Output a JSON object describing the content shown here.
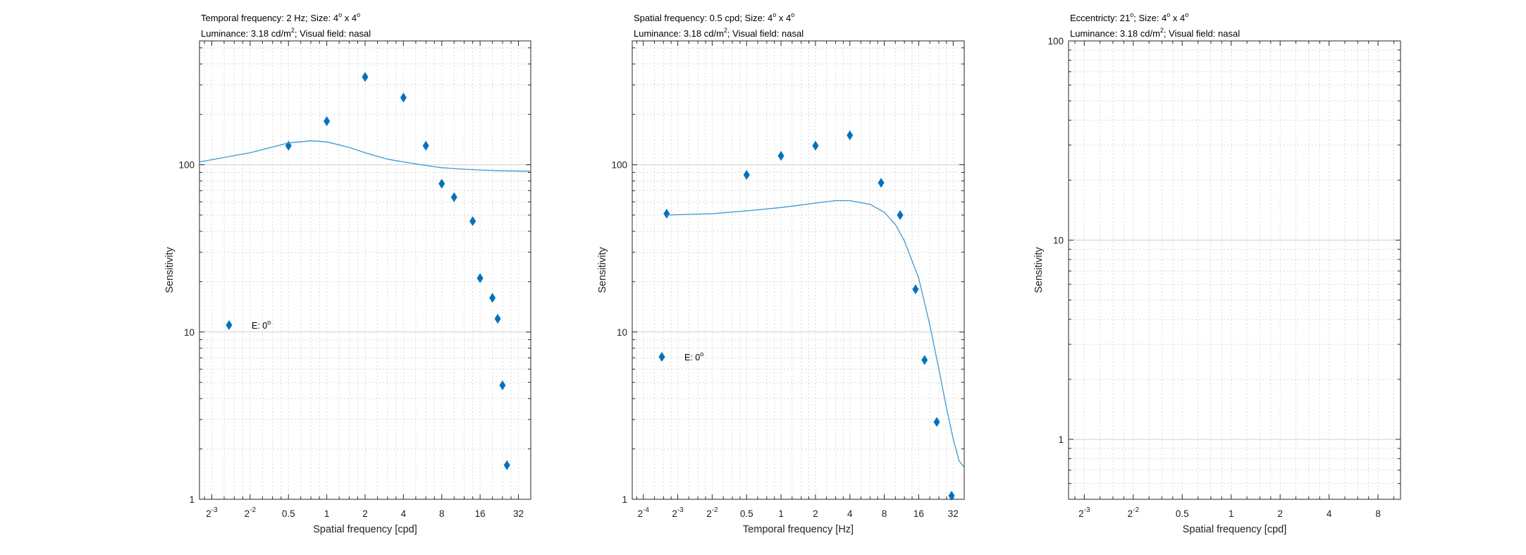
{
  "chart_data": [
    {
      "type": "scatter",
      "title_lines": [
        {
          "text": "Temporal frequency: 2 Hz; Size: 4",
          "sup1": "o",
          "mid": " x 4",
          "sup2": "o"
        },
        {
          "text": "Luminance: 3.18 cd/m",
          "sup1": "2",
          "mid": "; Visual field: nasal",
          "sup2": ""
        }
      ],
      "xlabel": "Spatial frequency [cpd]",
      "ylabel": "Sensitivity",
      "xscale": "log2",
      "yscale": "log10",
      "xlim": [
        0.1,
        40
      ],
      "ylim": [
        1,
        550
      ],
      "xticks": [
        0.125,
        0.25,
        0.5,
        1,
        2,
        4,
        8,
        16,
        32
      ],
      "xtick_labels": [
        {
          "base": "2",
          "exp": "-3"
        },
        {
          "base": "2",
          "exp": "-2"
        },
        {
          "base": "0.5",
          "exp": ""
        },
        {
          "base": "1",
          "exp": ""
        },
        {
          "base": "2",
          "exp": ""
        },
        {
          "base": "4",
          "exp": ""
        },
        {
          "base": "8",
          "exp": ""
        },
        {
          "base": "16",
          "exp": ""
        },
        {
          "base": "32",
          "exp": ""
        }
      ],
      "yticks": [
        1,
        10,
        100
      ],
      "ytick_labels": [
        "1",
        "10",
        "100"
      ],
      "grid": true,
      "legend": {
        "text": "E: 0",
        "sup": "o",
        "placement": "left-middle"
      },
      "series": [
        {
          "kind": "marker",
          "color": "#0072BD",
          "points": [
            [
              0.5,
              130
            ],
            [
              1,
              182
            ],
            [
              2,
              335
            ],
            [
              4,
              252
            ],
            [
              6,
              130
            ],
            [
              8,
              77
            ],
            [
              10,
              64
            ],
            [
              14,
              46
            ],
            [
              16,
              21
            ],
            [
              20,
              16
            ],
            [
              22,
              12
            ],
            [
              24,
              4.8
            ],
            [
              26,
              1.6
            ]
          ]
        },
        {
          "kind": "line",
          "color": "#3B98D4",
          "points": [
            [
              0.1,
              104
            ],
            [
              0.25,
              118
            ],
            [
              0.5,
              135
            ],
            [
              0.75,
              139
            ],
            [
              1,
              137
            ],
            [
              1.5,
              127
            ],
            [
              2,
              118
            ],
            [
              3,
              108
            ],
            [
              4,
              104
            ],
            [
              6,
              99
            ],
            [
              8,
              96
            ],
            [
              12,
              94
            ],
            [
              16,
              93
            ],
            [
              24,
              92
            ],
            [
              40,
              91.5
            ]
          ]
        }
      ]
    },
    {
      "type": "scatter",
      "title_lines": [
        {
          "text": "Spatial frequency: 0.5 cpd; Size: 4",
          "sup1": "o",
          "mid": " x 4",
          "sup2": "o"
        },
        {
          "text": "Luminance: 3.18 cd/m",
          "sup1": "2",
          "mid": "; Visual field: nasal",
          "sup2": ""
        }
      ],
      "xlabel": "Temporal frequency [Hz]",
      "ylabel": "Sensitivity",
      "xscale": "log2",
      "yscale": "log10",
      "xlim": [
        0.05,
        40
      ],
      "ylim": [
        1,
        550
      ],
      "xticks": [
        0.0625,
        0.125,
        0.25,
        0.5,
        1,
        2,
        4,
        8,
        16,
        32
      ],
      "xtick_labels": [
        {
          "base": "2",
          "exp": "-4"
        },
        {
          "base": "2",
          "exp": "-3"
        },
        {
          "base": "2",
          "exp": "-2"
        },
        {
          "base": "0.5",
          "exp": ""
        },
        {
          "base": "1",
          "exp": ""
        },
        {
          "base": "2",
          "exp": ""
        },
        {
          "base": "4",
          "exp": ""
        },
        {
          "base": "8",
          "exp": ""
        },
        {
          "base": "16",
          "exp": ""
        },
        {
          "base": "32",
          "exp": ""
        }
      ],
      "yticks": [
        1,
        10,
        100
      ],
      "ytick_labels": [
        "1",
        "10",
        "100"
      ],
      "grid": true,
      "legend": {
        "text": "E: 0",
        "sup": "o",
        "placement": "left-middle"
      },
      "series": [
        {
          "kind": "marker",
          "color": "#0072BD",
          "points": [
            [
              0.1,
              51
            ],
            [
              0.5,
              87
            ],
            [
              1,
              113
            ],
            [
              2,
              130
            ],
            [
              4,
              150
            ],
            [
              7.5,
              78
            ],
            [
              11,
              50
            ],
            [
              15,
              18
            ],
            [
              18,
              6.8
            ],
            [
              23,
              2.9
            ],
            [
              31,
              1.05
            ]
          ]
        },
        {
          "kind": "line",
          "color": "#3B98D4",
          "points": [
            [
              0.1,
              50
            ],
            [
              0.25,
              51
            ],
            [
              0.5,
              53
            ],
            [
              1,
              55.5
            ],
            [
              2,
              59
            ],
            [
              3,
              61
            ],
            [
              4,
              61
            ],
            [
              6,
              58
            ],
            [
              8,
              52
            ],
            [
              10,
              44
            ],
            [
              12,
              35
            ],
            [
              16,
              21
            ],
            [
              20,
              11
            ],
            [
              24,
              6
            ],
            [
              28,
              3.5
            ],
            [
              32,
              2.3
            ],
            [
              36,
              1.7
            ],
            [
              40,
              1.55
            ]
          ]
        }
      ]
    },
    {
      "type": "scatter",
      "title_lines": [
        {
          "text": "Eccentricty: 21",
          "sup1": "o",
          "mid": "; Size: 4",
          "sup2": "o",
          "tail": " x 4",
          "sup3": "o"
        },
        {
          "text": "Luminance: 3.18 cd/m",
          "sup1": "2",
          "mid": "; Visual field: nasal",
          "sup2": ""
        }
      ],
      "xlabel": "Spatial frequency [cpd]",
      "ylabel": "Sensitivity",
      "xscale": "log2",
      "yscale": "log10",
      "xlim": [
        0.1,
        11
      ],
      "ylim": [
        0.5,
        100
      ],
      "xticks": [
        0.125,
        0.25,
        0.5,
        1,
        2,
        4,
        8
      ],
      "xtick_labels": [
        {
          "base": "2",
          "exp": "-3"
        },
        {
          "base": "2",
          "exp": "-2"
        },
        {
          "base": "0.5",
          "exp": ""
        },
        {
          "base": "1",
          "exp": ""
        },
        {
          "base": "2",
          "exp": ""
        },
        {
          "base": "4",
          "exp": ""
        },
        {
          "base": "8",
          "exp": ""
        }
      ],
      "yticks": [
        1,
        10,
        100
      ],
      "ytick_labels": [
        "1",
        "10",
        "100"
      ],
      "grid": true,
      "series": []
    }
  ]
}
